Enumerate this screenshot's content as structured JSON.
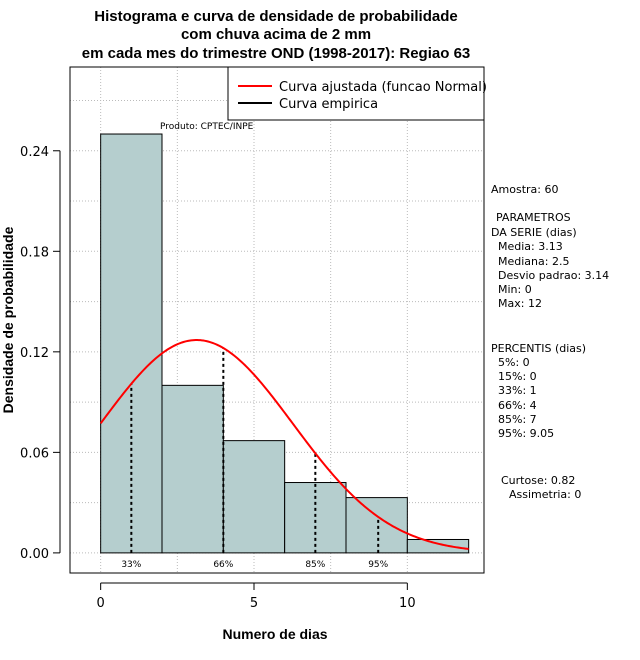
{
  "chart_data": {
    "type": "bar",
    "title_lines": [
      "Histograma e curva de densidade de probabilidade",
      "com chuva acima de 2 mm",
      "em cada mes do trimestre OND (1998-2017): Regiao 63"
    ],
    "xlabel": "Numero de dias",
    "ylabel": "Densidade de probabilidade",
    "xlim": [
      -1,
      12.5
    ],
    "ylim": [
      -0.012,
      0.29
    ],
    "xticks": [
      0,
      5,
      10
    ],
    "xtick_labels": [
      "0",
      "5",
      "10"
    ],
    "yticks": [
      0.0,
      0.06,
      0.12,
      0.18,
      0.24
    ],
    "ytick_labels": [
      "0.00",
      "0.06",
      "0.12",
      "0.18",
      "0.24"
    ],
    "bins": [
      {
        "start": 0,
        "end": 2,
        "density": 0.25
      },
      {
        "start": 2,
        "end": 4,
        "density": 0.1
      },
      {
        "start": 4,
        "end": 6,
        "density": 0.067
      },
      {
        "start": 6,
        "end": 8,
        "density": 0.042
      },
      {
        "start": 8,
        "end": 10,
        "density": 0.033
      },
      {
        "start": 10,
        "end": 12,
        "density": 0.008
      }
    ],
    "normal_fit": {
      "mean": 3.13,
      "sd": 3.14,
      "x_start": 0,
      "x_end": 12
    },
    "percentile_lines": [
      {
        "x": 1,
        "label": "33%"
      },
      {
        "x": 4,
        "label": "66%"
      },
      {
        "x": 7,
        "label": "85%"
      },
      {
        "x": 9.05,
        "label": "95%"
      }
    ],
    "legend": [
      {
        "label": "Curva ajustada (funcao Normal)",
        "color": "#ff0000"
      },
      {
        "label": "Curva empirica",
        "color": "#000000"
      }
    ],
    "annotation": "Produto: CPTEC/INPE",
    "colors": {
      "bar_fill": "#b5cece",
      "curve": "#ff0000",
      "grid": "#bbbbbb"
    }
  },
  "stats_panel": {
    "sample": "Amostra: 60",
    "params_title_1": "PARAMETROS",
    "params_title_2": "DA SERIE (dias)",
    "params": [
      "Media: 3.13",
      "Mediana: 2.5",
      "Desvio padrao: 3.14",
      "Min: 0",
      "Max: 12"
    ],
    "percentis_title": "PERCENTIS (dias)",
    "percentis": [
      "5%: 0",
      "15%: 0",
      "33%: 1",
      "66%: 4",
      "85%: 7",
      "95%: 9.05"
    ],
    "curtose": "Curtose: 0.82",
    "assimetria": "Assimetria: 0"
  }
}
